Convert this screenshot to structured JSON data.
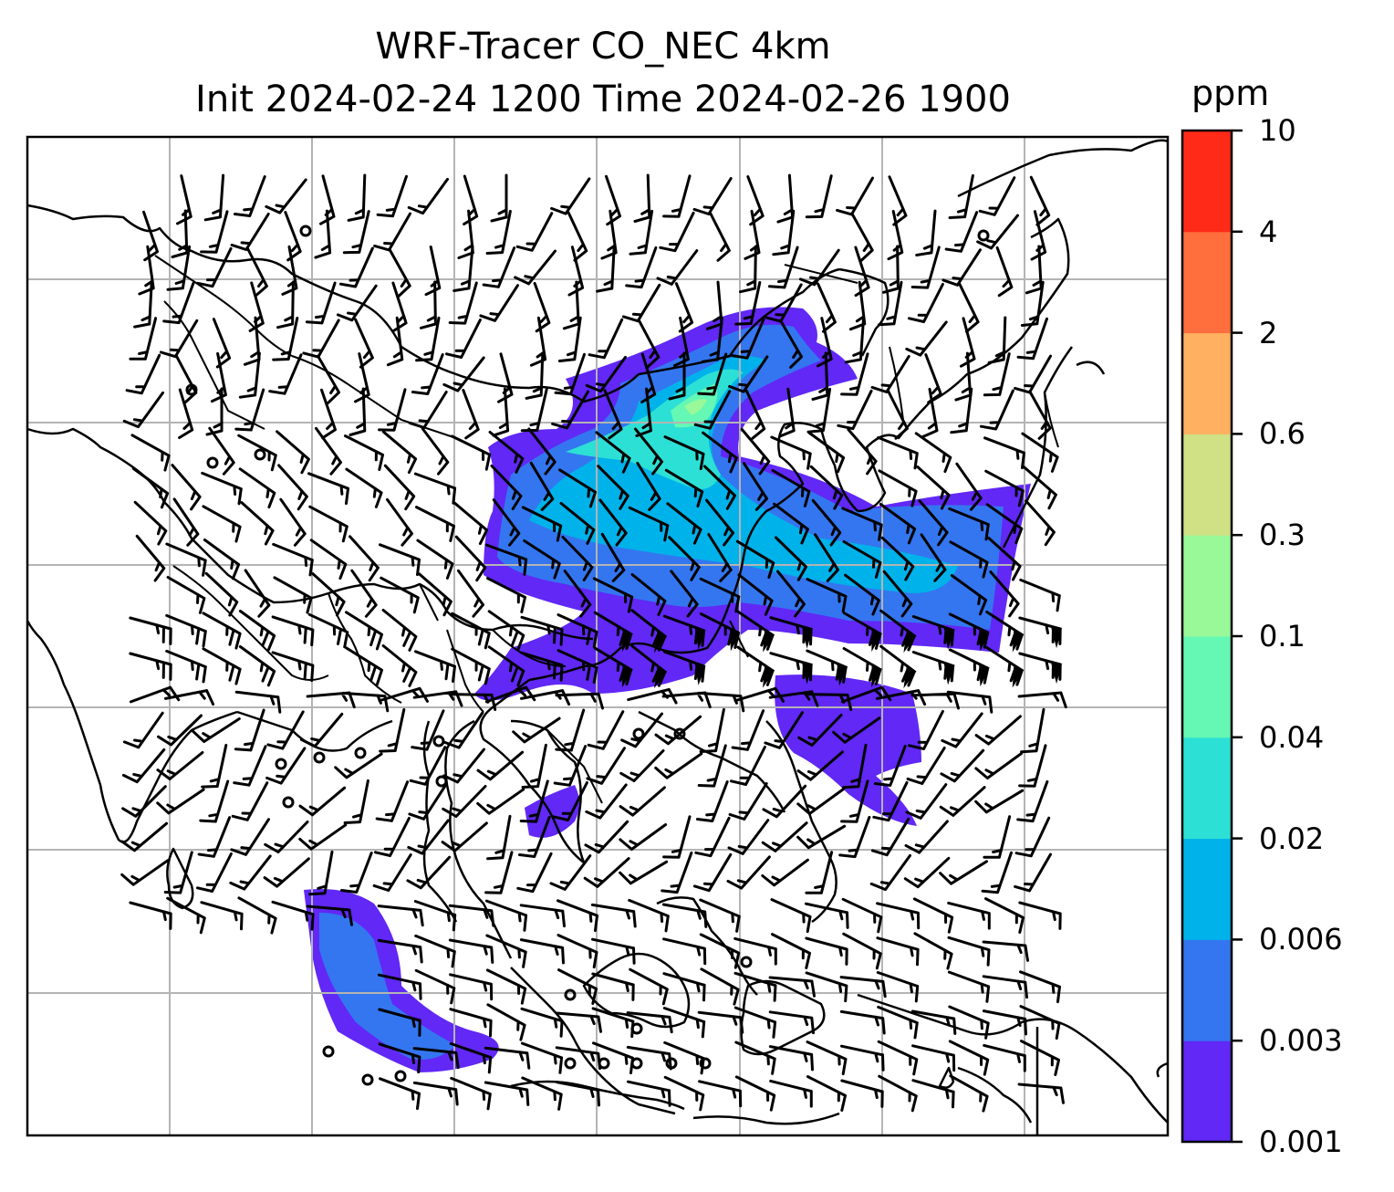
{
  "title_line1": "WRF-Tracer CO_NEC 4km",
  "title_line2": "Init 2024-02-24 1200 Time 2024-02-26 1900",
  "colorbar": {
    "unit": "ppm",
    "levels": [
      "0.001",
      "0.003",
      "0.006",
      "0.02",
      "0.04",
      "0.1",
      "0.3",
      "0.6",
      "2",
      "4",
      "10"
    ],
    "colors": [
      "#6128f6",
      "#3476f0",
      "#00b2ea",
      "#2de0d5",
      "#64f8b4",
      "#99f898",
      "#cfe085",
      "#ffb060",
      "#ff6e3c",
      "#ff2a17"
    ]
  },
  "map": {
    "gridlines": true,
    "gridline_color": "#b4b4b4",
    "coastline_color": "#000000",
    "wind_barb_color": "#000000"
  }
}
